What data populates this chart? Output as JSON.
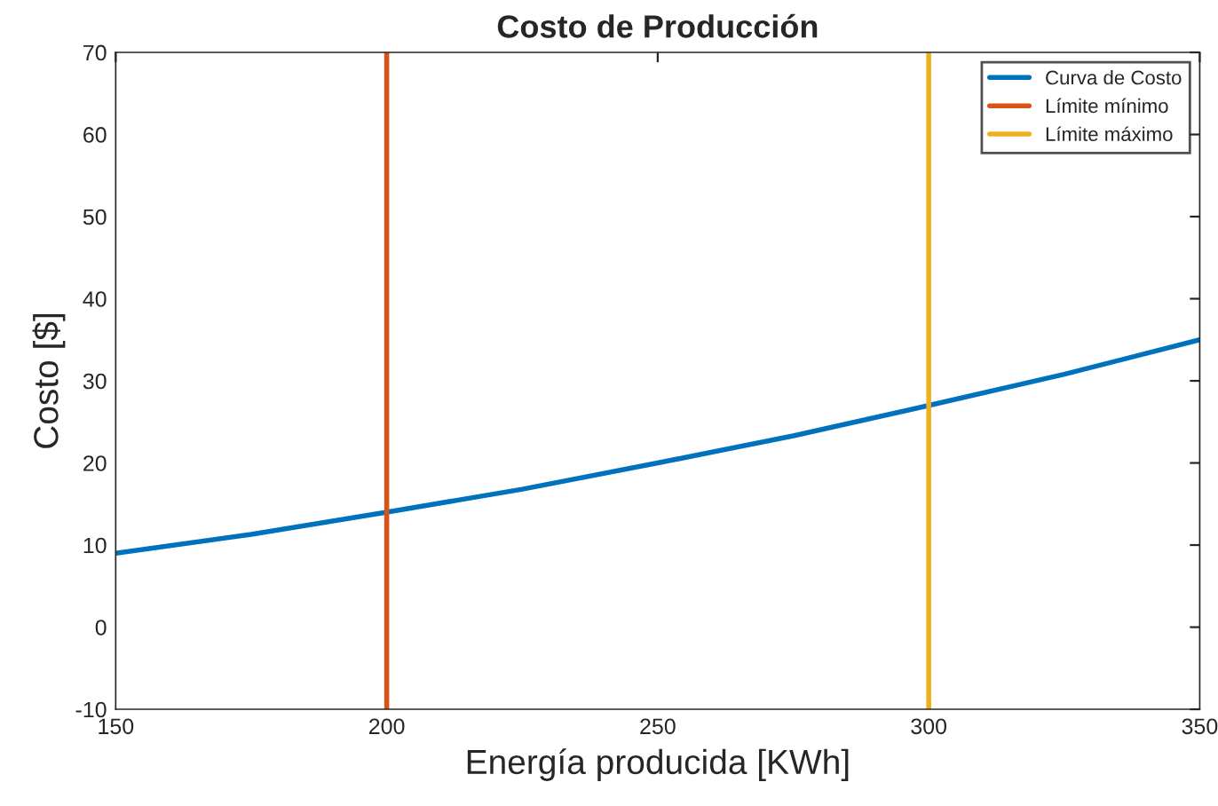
{
  "chart_data": {
    "type": "line",
    "title": "Costo de Producción",
    "xlabel": "Energía producida [KWh]",
    "ylabel": "Costo [$]",
    "series": [
      {
        "name": "Curva de Costo",
        "color": "#0072bd",
        "x": [
          150,
          175,
          200,
          225,
          250,
          275,
          300,
          325,
          350
        ],
        "values": [
          9,
          11.3,
          14,
          16.8,
          20,
          23.3,
          27,
          30.8,
          35
        ]
      },
      {
        "name": "Límite mínimo",
        "color": "#d95319",
        "x": [
          200,
          200
        ],
        "values": [
          -10,
          70
        ]
      },
      {
        "name": "Límite máximo",
        "color": "#edb120",
        "x": [
          300,
          300
        ],
        "values": [
          -10,
          70
        ]
      }
    ],
    "xlim": [
      150,
      350
    ],
    "xticks": [
      150,
      200,
      250,
      300,
      350
    ],
    "ylim": [
      -10,
      70
    ],
    "yticks": [
      -10,
      0,
      10,
      20,
      30,
      40,
      50,
      60,
      70
    ],
    "grid": false,
    "legend": "top right",
    "line_style": "solid",
    "marker": "none"
  }
}
